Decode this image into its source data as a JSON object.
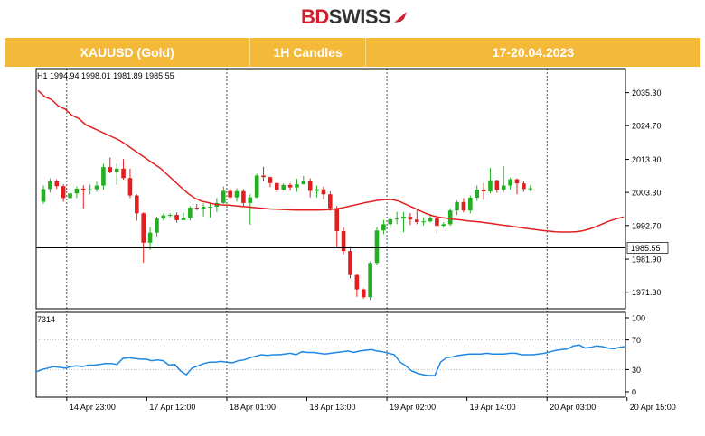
{
  "brand": {
    "part1": "BD",
    "part2": "SWISS",
    "accent": "#d0202e"
  },
  "header": {
    "symbol": "XAUUSD (Gold)",
    "timeframe": "1H Candles",
    "dates": "17-20.04.2023",
    "bg": "#f5b93a"
  },
  "chart_data": [
    {
      "type": "candlestick",
      "info": {
        "timeframe": "H1",
        "open": "1994.94",
        "high": "1998.01",
        "low": "1981.89",
        "close": "1985.55"
      },
      "ylim": [
        1966,
        2043
      ],
      "yticks": [
        "2035.30",
        "2024.70",
        "2013.90",
        "2003.30",
        "1992.70",
        "1981.90",
        "1971.30"
      ],
      "last_price_label": "1985.55",
      "last_price": 1985.55,
      "xticks": [
        "14 Apr 23:00",
        "17 Apr 12:00",
        "18 Apr 01:00",
        "18 Apr 13:00",
        "19 Apr 02:00",
        "19 Apr 14:00",
        "20 Apr 03:00",
        "20 Apr 15:00"
      ],
      "xtick_index": [
        4,
        16,
        28,
        40,
        52,
        64,
        76,
        88
      ],
      "session_breaks": [
        4,
        28,
        52,
        76,
        100
      ],
      "up_color": "#22b022",
      "down_color": "#e02020",
      "ma_color": "#e02020",
      "ma": [
        2036,
        2034,
        2033,
        2031,
        2030,
        2028,
        2027,
        2025,
        2024,
        2023,
        2022,
        2021,
        2020,
        2018.5,
        2017,
        2015.5,
        2014,
        2012.5,
        2011,
        2009,
        2007,
        2005,
        2003,
        2001.5,
        2000.5,
        2000,
        1999.5,
        1999.3,
        1999.2,
        1999,
        1998.8,
        1998.6,
        1998.4,
        1998.2,
        1998,
        1997.9,
        1997.8,
        1997.7,
        1997.6,
        1997.6,
        1997.6,
        1997.6,
        1997.7,
        1997.8,
        1998.1,
        1998.5,
        1999,
        1999.5,
        2000,
        2000.4,
        2000.8,
        2001,
        2001,
        2000.5,
        1999.5,
        1998.5,
        1997.5,
        1996.5,
        1995.8,
        1995.3,
        1995,
        1994.7,
        1994.5,
        1994.2,
        1994,
        1993.8,
        1993.5,
        1993.2,
        1992.9,
        1992.6,
        1992.3,
        1992,
        1991.7,
        1991.4,
        1991.1,
        1990.9,
        1990.7,
        1990.6,
        1990.6,
        1990.7,
        1991,
        1991.6,
        1992.4,
        1993.3,
        1994.2,
        1994.9,
        1995.4
      ],
      "candles": [
        [
          2000.3,
          2005.5,
          1999.6,
          2004.4
        ],
        [
          2004.4,
          2007.8,
          2003.2,
          2006.9
        ],
        [
          2006.9,
          2007.5,
          2004.4,
          2005.3
        ],
        [
          2005.3,
          2005.9,
          2000.3,
          2001.5
        ],
        [
          2001.5,
          2003.6,
          1996.6,
          2003
        ],
        [
          2003,
          2005.2,
          2001.5,
          2004.5
        ],
        [
          2004.5,
          2005.6,
          1998.1,
          2004.1
        ],
        [
          2004.1,
          2005.8,
          2002.7,
          2004.3
        ],
        [
          2004.3,
          2006.7,
          2003.5,
          2005.5
        ],
        [
          2005.5,
          2012.5,
          2004.1,
          2011.4
        ],
        [
          2011.4,
          2014.5,
          2009.4,
          2009.8
        ],
        [
          2009.8,
          2012.5,
          2005.8,
          2010.9
        ],
        [
          2010.9,
          2014,
          2007.4,
          2007.9
        ],
        [
          2007.9,
          2010.9,
          2001.5,
          2002.3
        ],
        [
          2002.3,
          2002.7,
          1994.2,
          1996.6
        ],
        [
          1996.6,
          1996.9,
          1980.8,
          1987.2
        ],
        [
          1987.2,
          1992.2,
          1984.8,
          1990.4
        ],
        [
          1990.4,
          1995.6,
          1989.2,
          1994.9
        ],
        [
          1994.9,
          1996.6,
          1994.3,
          1995.9
        ],
        [
          1995.9,
          1996.6,
          1995.3,
          1996.1
        ],
        [
          1996.1,
          1996.9,
          1993.6,
          1994.4
        ],
        [
          1994.4,
          1996.9,
          1994.4,
          1995.2
        ],
        [
          1995.2,
          1998.9,
          1994.3,
          1998.4
        ],
        [
          1998.4,
          1999.6,
          1997.6,
          1998.1
        ],
        [
          1998.1,
          1999.8,
          1995.6,
          1998.7
        ],
        [
          1998.7,
          1999.9,
          1995.2,
          1998.7
        ],
        [
          1998.7,
          2001.5,
          1997,
          1999.9
        ],
        [
          1999.9,
          2005.2,
          1999.6,
          2003.8
        ],
        [
          2003.8,
          2004.5,
          2000.9,
          2001.7
        ],
        [
          2001.7,
          2004.6,
          2000.4,
          2003.7
        ],
        [
          2003.7,
          2004.4,
          1999,
          1999.9
        ],
        [
          1999.9,
          2002.7,
          1992.9,
          2001.7
        ],
        [
          2001.7,
          2009.3,
          2001.4,
          2008.7
        ],
        [
          2008.7,
          2011.5,
          2006.9,
          2008.2
        ],
        [
          2008.2,
          2008.4,
          2005,
          2006.3
        ],
        [
          2006.3,
          2006.3,
          2003.3,
          2004.2
        ],
        [
          2004.2,
          2006.2,
          2003.9,
          2005.7
        ],
        [
          2005.7,
          2006.3,
          2003.9,
          2004.9
        ],
        [
          2004.9,
          2007.7,
          2003.5,
          2005.9
        ],
        [
          2005.9,
          2008.6,
          2005.9,
          2007.1
        ],
        [
          2007.1,
          2007.8,
          2001.7,
          2003.8
        ],
        [
          2003.8,
          2005.5,
          2001.7,
          2004.3
        ],
        [
          2004.3,
          2005.2,
          2001.1,
          2002.7
        ],
        [
          2002.7,
          2003.6,
          1997.4,
          1998.2
        ],
        [
          1998.2,
          1998.9,
          1985.4,
          1990.9
        ],
        [
          1990.9,
          1992.1,
          1983.4,
          1984.5
        ],
        [
          1984.5,
          1985.8,
          1975.7,
          1976.8
        ],
        [
          1976.8,
          1977.2,
          1969.8,
          1972.2
        ],
        [
          1972.2,
          1972.5,
          1969.2,
          1969.7
        ],
        [
          1969.7,
          1981.2,
          1968.8,
          1980.7
        ],
        [
          1980.7,
          1992.1,
          1979.9,
          1991.1
        ],
        [
          1991.1,
          1994.5,
          1989.9,
          1993.1
        ],
        [
          1993.1,
          1995.5,
          1991.8,
          1994.7
        ],
        [
          1994.7,
          1997.1,
          1993.1,
          1994.9
        ],
        [
          1994.9,
          1997,
          1990.6,
          1995.5
        ],
        [
          1995.5,
          1996.7,
          1992.8,
          1994.6
        ],
        [
          1994.6,
          1997.5,
          1993.1,
          1993.8
        ],
        [
          1993.8,
          1995.3,
          1992.7,
          1994
        ],
        [
          1994,
          1996.4,
          1993.7,
          1995
        ],
        [
          1995,
          1995.3,
          1990.2,
          1992.6
        ],
        [
          1992.6,
          1993.7,
          1992,
          1993.1
        ],
        [
          1993.1,
          1998.2,
          1992.6,
          1997.5
        ],
        [
          1997.5,
          2000.6,
          1996,
          2000.2
        ],
        [
          2000.2,
          2001.5,
          1996.9,
          1997.5
        ],
        [
          1997.5,
          2002.3,
          1996.6,
          2001.6
        ],
        [
          2001.6,
          2005.5,
          2000.6,
          2004.2
        ],
        [
          2004.2,
          2006.3,
          2000.9,
          2003.6
        ],
        [
          2003.6,
          2011.1,
          2003,
          2007.2
        ],
        [
          2007.2,
          2007.4,
          2003.2,
          2004.1
        ],
        [
          2004.1,
          2011.7,
          2003.5,
          2005.5
        ],
        [
          2005.5,
          2008,
          2004.2,
          2007.5
        ],
        [
          2007.5,
          2007.8,
          2002.7,
          2006.2
        ],
        [
          2006.2,
          2006.9,
          2003.5,
          2004.4
        ],
        [
          2004.4,
          2005.6,
          2003.7,
          2004.6
        ]
      ],
      "indicator": {
        "label": "7314",
        "ylim": [
          0,
          100
        ],
        "yticks": [
          "100",
          "70",
          "30",
          "0"
        ],
        "ytick_values": [
          100,
          70,
          30,
          0
        ],
        "color": "#1e88e5",
        "values": [
          27,
          30,
          32,
          34,
          33,
          32,
          34,
          35,
          34,
          36,
          36,
          37,
          38,
          38,
          37,
          45,
          46,
          45,
          44,
          44,
          42,
          43,
          42,
          36,
          37,
          28,
          23,
          32,
          35,
          38,
          40,
          40,
          41,
          40,
          39,
          42,
          43,
          46,
          48,
          50,
          49,
          50,
          50,
          51,
          52,
          50,
          54,
          53,
          53,
          52,
          51,
          52,
          53,
          54,
          55,
          53,
          55,
          56,
          57,
          55,
          54,
          52,
          50,
          40,
          35,
          28,
          25,
          23,
          22,
          22,
          40,
          46,
          47,
          49,
          50,
          51,
          51,
          51,
          52,
          51,
          51,
          51,
          52,
          52,
          50,
          50,
          50,
          51,
          52,
          54,
          56,
          57,
          58,
          62,
          63,
          59,
          60,
          62,
          61,
          59,
          58,
          60,
          61
        ]
      }
    }
  ]
}
